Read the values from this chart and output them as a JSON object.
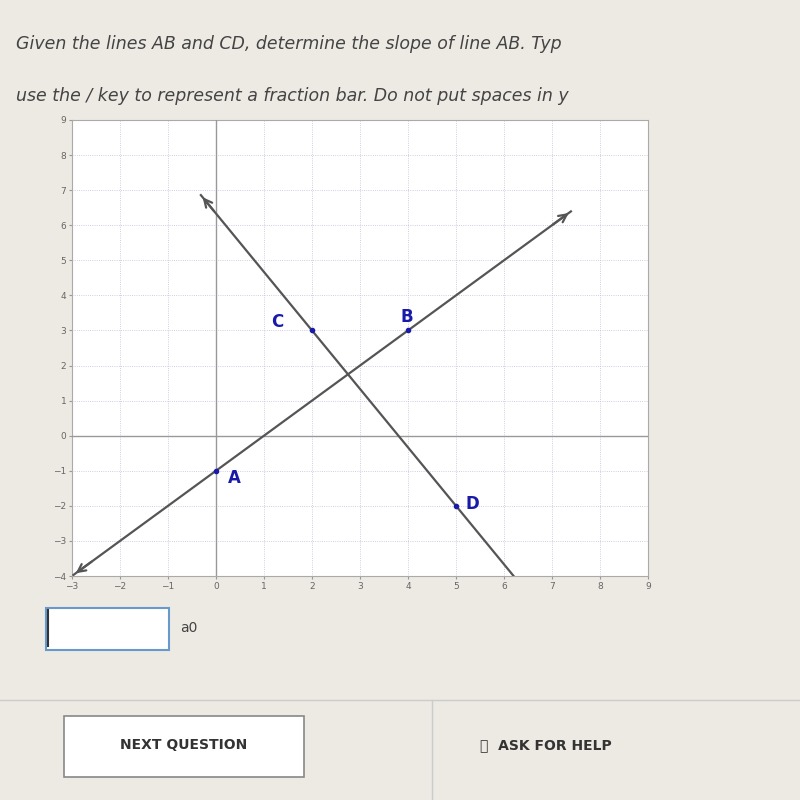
{
  "title_line1": "Given the lines AB and CD, determine the slope of line AB. Typ",
  "title_line2": "use the / key to represent a fraction bar. Do not put spaces in y",
  "background_color": "#ede9e3",
  "graph_bg_color": "#ffffff",
  "grid_color": "#c0bdd8",
  "axis_color": "#999999",
  "line_color": "#555555",
  "label_color": "#1a1aaa",
  "point_A": [
    0,
    -1
  ],
  "point_B": [
    4,
    3
  ],
  "point_C": [
    2,
    3
  ],
  "point_D": [
    5,
    -2
  ],
  "xmin": -3,
  "xmax": 9,
  "ymin": -4,
  "ymax": 9,
  "input_label": "a0",
  "next_question": "NEXT QUESTION",
  "ask_help": "ASK FOR HELP"
}
